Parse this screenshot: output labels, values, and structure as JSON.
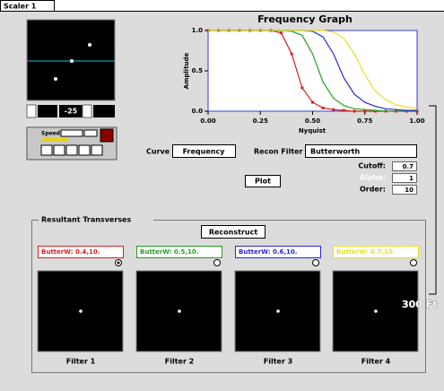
{
  "tab": "Scaler 1",
  "viewer": {
    "speed_label": "Speed",
    "offset": "-25"
  },
  "chart_data": {
    "type": "line",
    "title": "Frequency Graph",
    "x_label": "Nyquist",
    "y_label": "Amplitude",
    "x": [
      0,
      0.05,
      0.1,
      0.15,
      0.2,
      0.25,
      0.3,
      0.35,
      0.4,
      0.45,
      0.5,
      0.55,
      0.6,
      0.65,
      0.7,
      0.75,
      0.8,
      0.85,
      0.9,
      0.95,
      1
    ],
    "series": [
      {
        "color": "#d42020",
        "marker": "square",
        "values": [
          1,
          1,
          1,
          1,
          1,
          1,
          1,
          0.97,
          0.71,
          0.29,
          0.11,
          0.04,
          0.02,
          0.01,
          0,
          0,
          0,
          0,
          0,
          0,
          0
        ]
      },
      {
        "color": "#20a020",
        "values": [
          1,
          1,
          1,
          1,
          1,
          1,
          1,
          1,
          0.99,
          0.94,
          0.71,
          0.36,
          0.16,
          0.07,
          0.03,
          0.02,
          0.01,
          0,
          0,
          0,
          0
        ]
      },
      {
        "color": "#2828d0",
        "values": [
          1,
          1,
          1,
          1,
          1,
          1,
          1,
          1,
          1,
          1,
          0.99,
          0.92,
          0.71,
          0.41,
          0.21,
          0.11,
          0.06,
          0.03,
          0.02,
          0.01,
          0.01
        ]
      },
      {
        "color": "#e8e020",
        "values": [
          1,
          1,
          1,
          1,
          1,
          1,
          1,
          1,
          1,
          1,
          1,
          1,
          0.98,
          0.9,
          0.71,
          0.45,
          0.25,
          0.14,
          0.08,
          0.05,
          0.03
        ]
      }
    ],
    "xlim": [
      0,
      1
    ],
    "ylim": [
      0,
      1
    ],
    "xticks": [
      {
        "value": 0,
        "label": "0.00"
      },
      {
        "value": 0.25,
        "label": "0.25"
      },
      {
        "value": 0.5,
        "label": "0.50"
      },
      {
        "value": 0.75,
        "label": "0.75"
      },
      {
        "value": 1,
        "label": "1.00"
      }
    ],
    "yticks": [
      {
        "value": 0,
        "label": "0.0"
      },
      {
        "value": 0.5,
        "label": "0.5"
      },
      {
        "value": 1,
        "label": "1.0"
      }
    ]
  },
  "controls": {
    "curve_label": "Curve",
    "curve": "Frequency",
    "recon_label": "Recon Filter",
    "recon": "Butterworth",
    "cutoff_label": "Cutoff:",
    "cutoff": "0.7",
    "alpha_label": "Alpha:",
    "alpha": "1",
    "order_label": "Order:",
    "order": "10",
    "plot": "Plot"
  },
  "results": {
    "title": "Resultant Transverses",
    "reconstruct": "Reconstruct",
    "filters": [
      {
        "label": "ButterW: 0.4,10.",
        "name": "Filter 1"
      },
      {
        "label": "ButterW: 0.5,10.",
        "name": "Filter 2"
      },
      {
        "label": "ButterW: 0.6,10.",
        "name": "Filter 3"
      },
      {
        "label": "ButterW: 0.7,10.",
        "name": "Filter 4"
      }
    ]
  },
  "overlay": "300 Ft"
}
